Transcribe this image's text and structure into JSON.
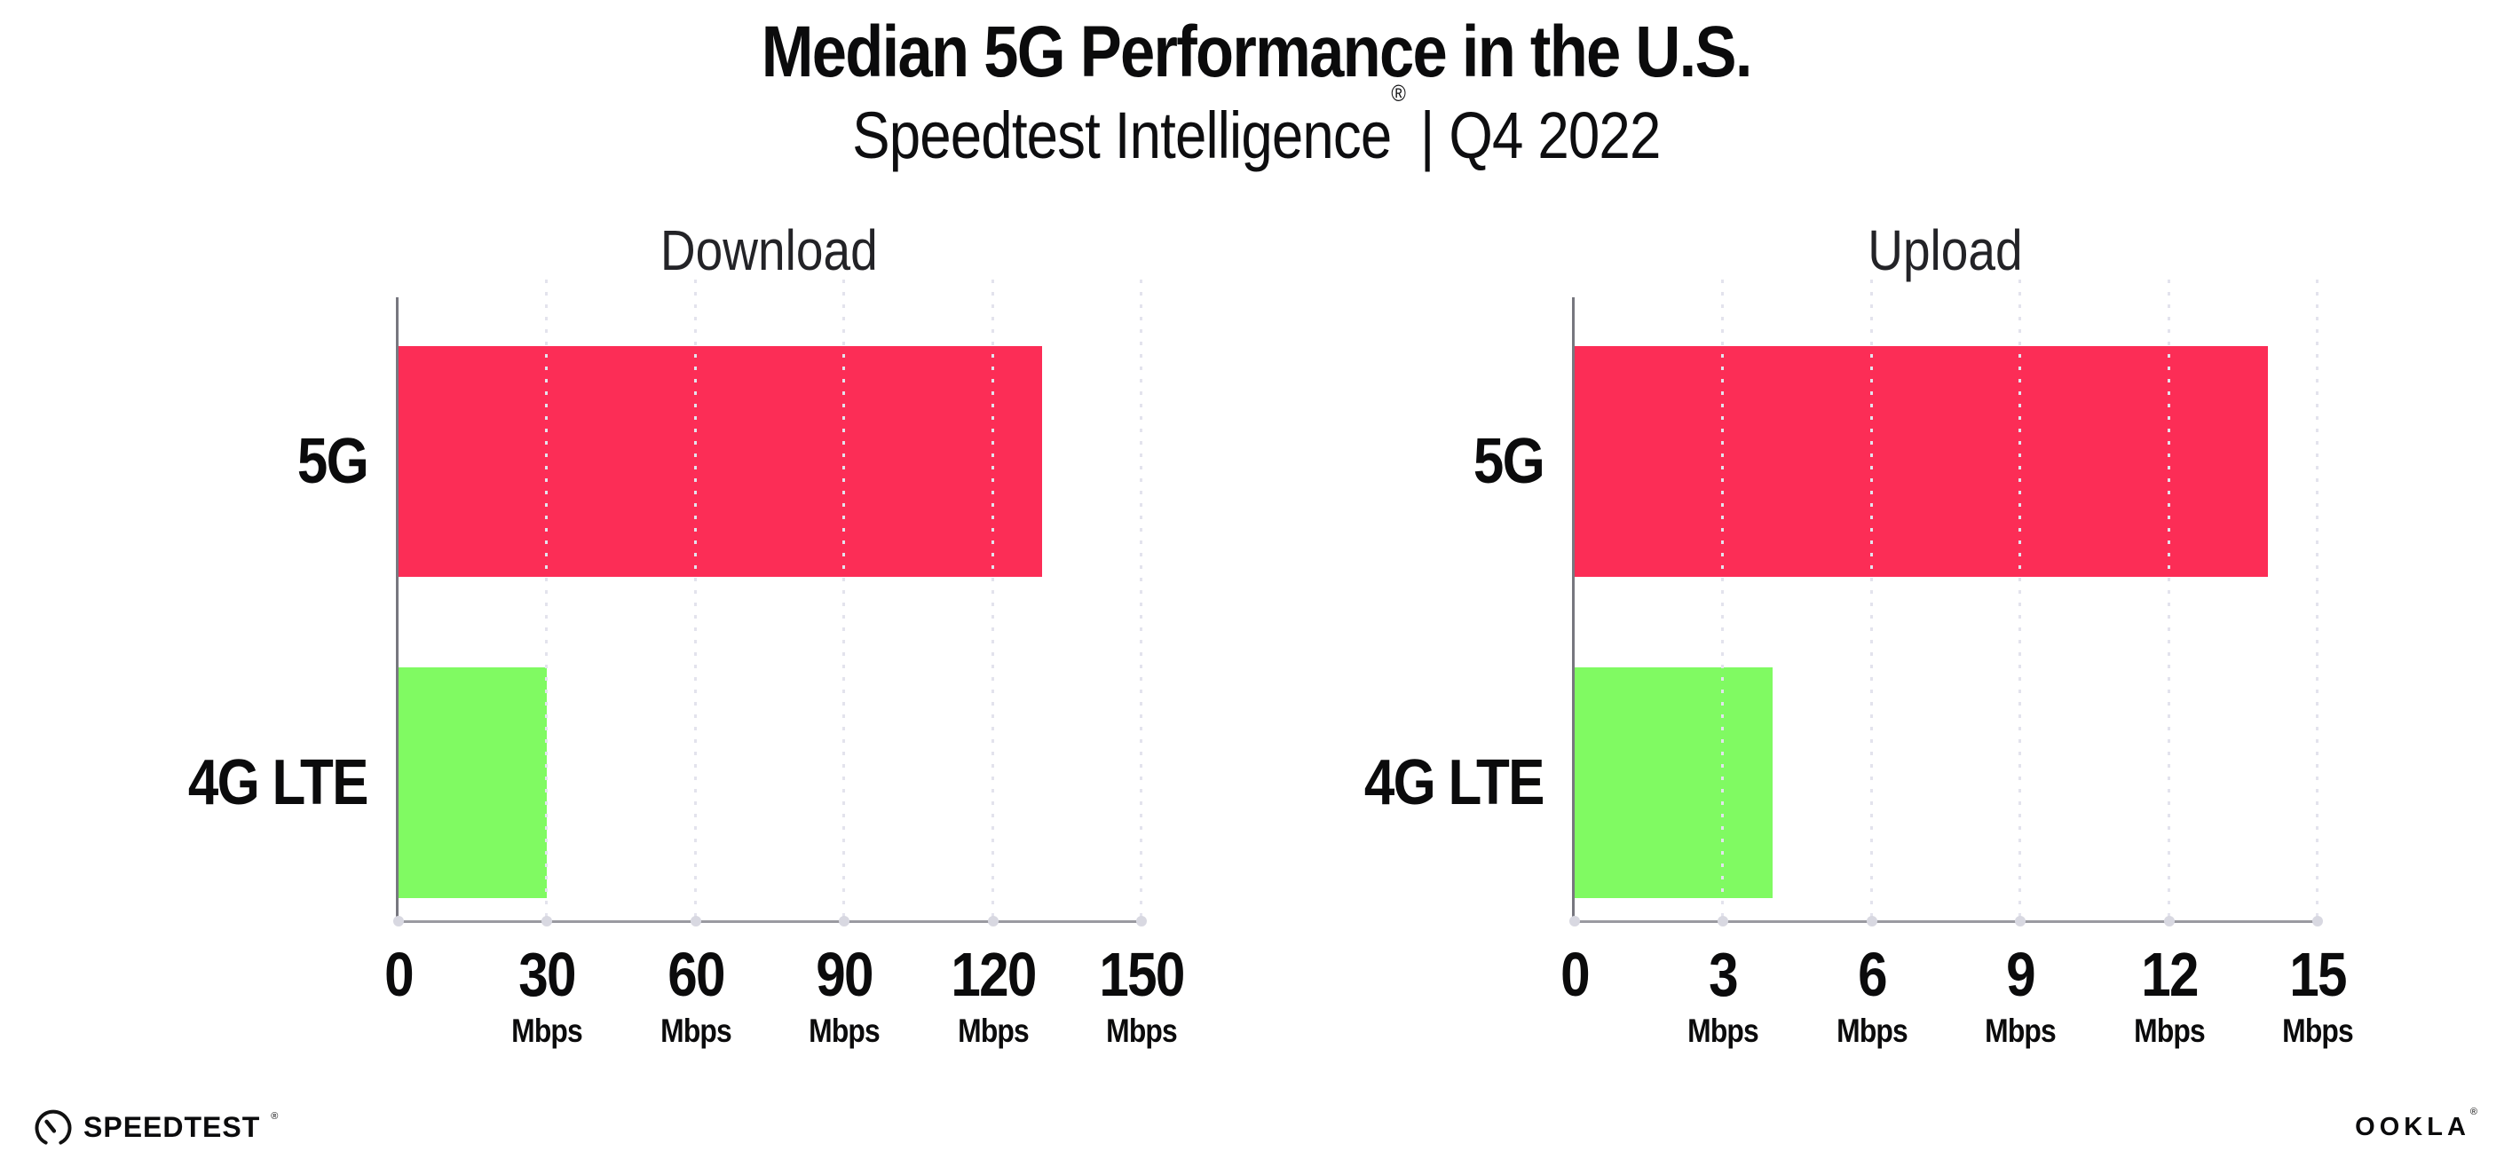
{
  "title": "Median 5G Performance in the U.S.",
  "subtitle": {
    "brand": "Speedtest Intelligence",
    "reg_mark": "®",
    "rest": " | Q4 2022"
  },
  "colors": {
    "bar_5g": "#fc2d56",
    "bar_4g_lte": "#80fa62",
    "gridline": "#e3e3ed",
    "y_axis": "#77777f",
    "x_axis": "#9a9aa1",
    "tick_dot": "#d8d8e1",
    "text": "#0b0b0c"
  },
  "chart_data": [
    {
      "type": "bar",
      "orientation": "horizontal",
      "title": "Download",
      "categories": [
        "5G",
        "4G LTE"
      ],
      "values": [
        130,
        30
      ],
      "unit": "Mbps",
      "xlim": [
        0,
        150
      ],
      "ticks": [
        0,
        30,
        60,
        90,
        120,
        150
      ],
      "tick_unit_label": "Mbps",
      "bar_colors": [
        "#fc2d56",
        "#80fa62"
      ],
      "grid": "vertical-dotted",
      "legend": "none"
    },
    {
      "type": "bar",
      "orientation": "horizontal",
      "title": "Upload",
      "categories": [
        "5G",
        "4G LTE"
      ],
      "values": [
        14,
        4
      ],
      "unit": "Mbps",
      "xlim": [
        0,
        15
      ],
      "ticks": [
        0,
        3,
        6,
        9,
        12,
        15
      ],
      "tick_unit_label": "Mbps",
      "bar_colors": [
        "#fc2d56",
        "#80fa62"
      ],
      "grid": "vertical-dotted",
      "legend": "none"
    }
  ],
  "footer": {
    "speedtest_label": "SPEEDTEST",
    "speedtest_mark": "®",
    "ookla_label": "OOKLA",
    "ookla_mark": "®"
  }
}
